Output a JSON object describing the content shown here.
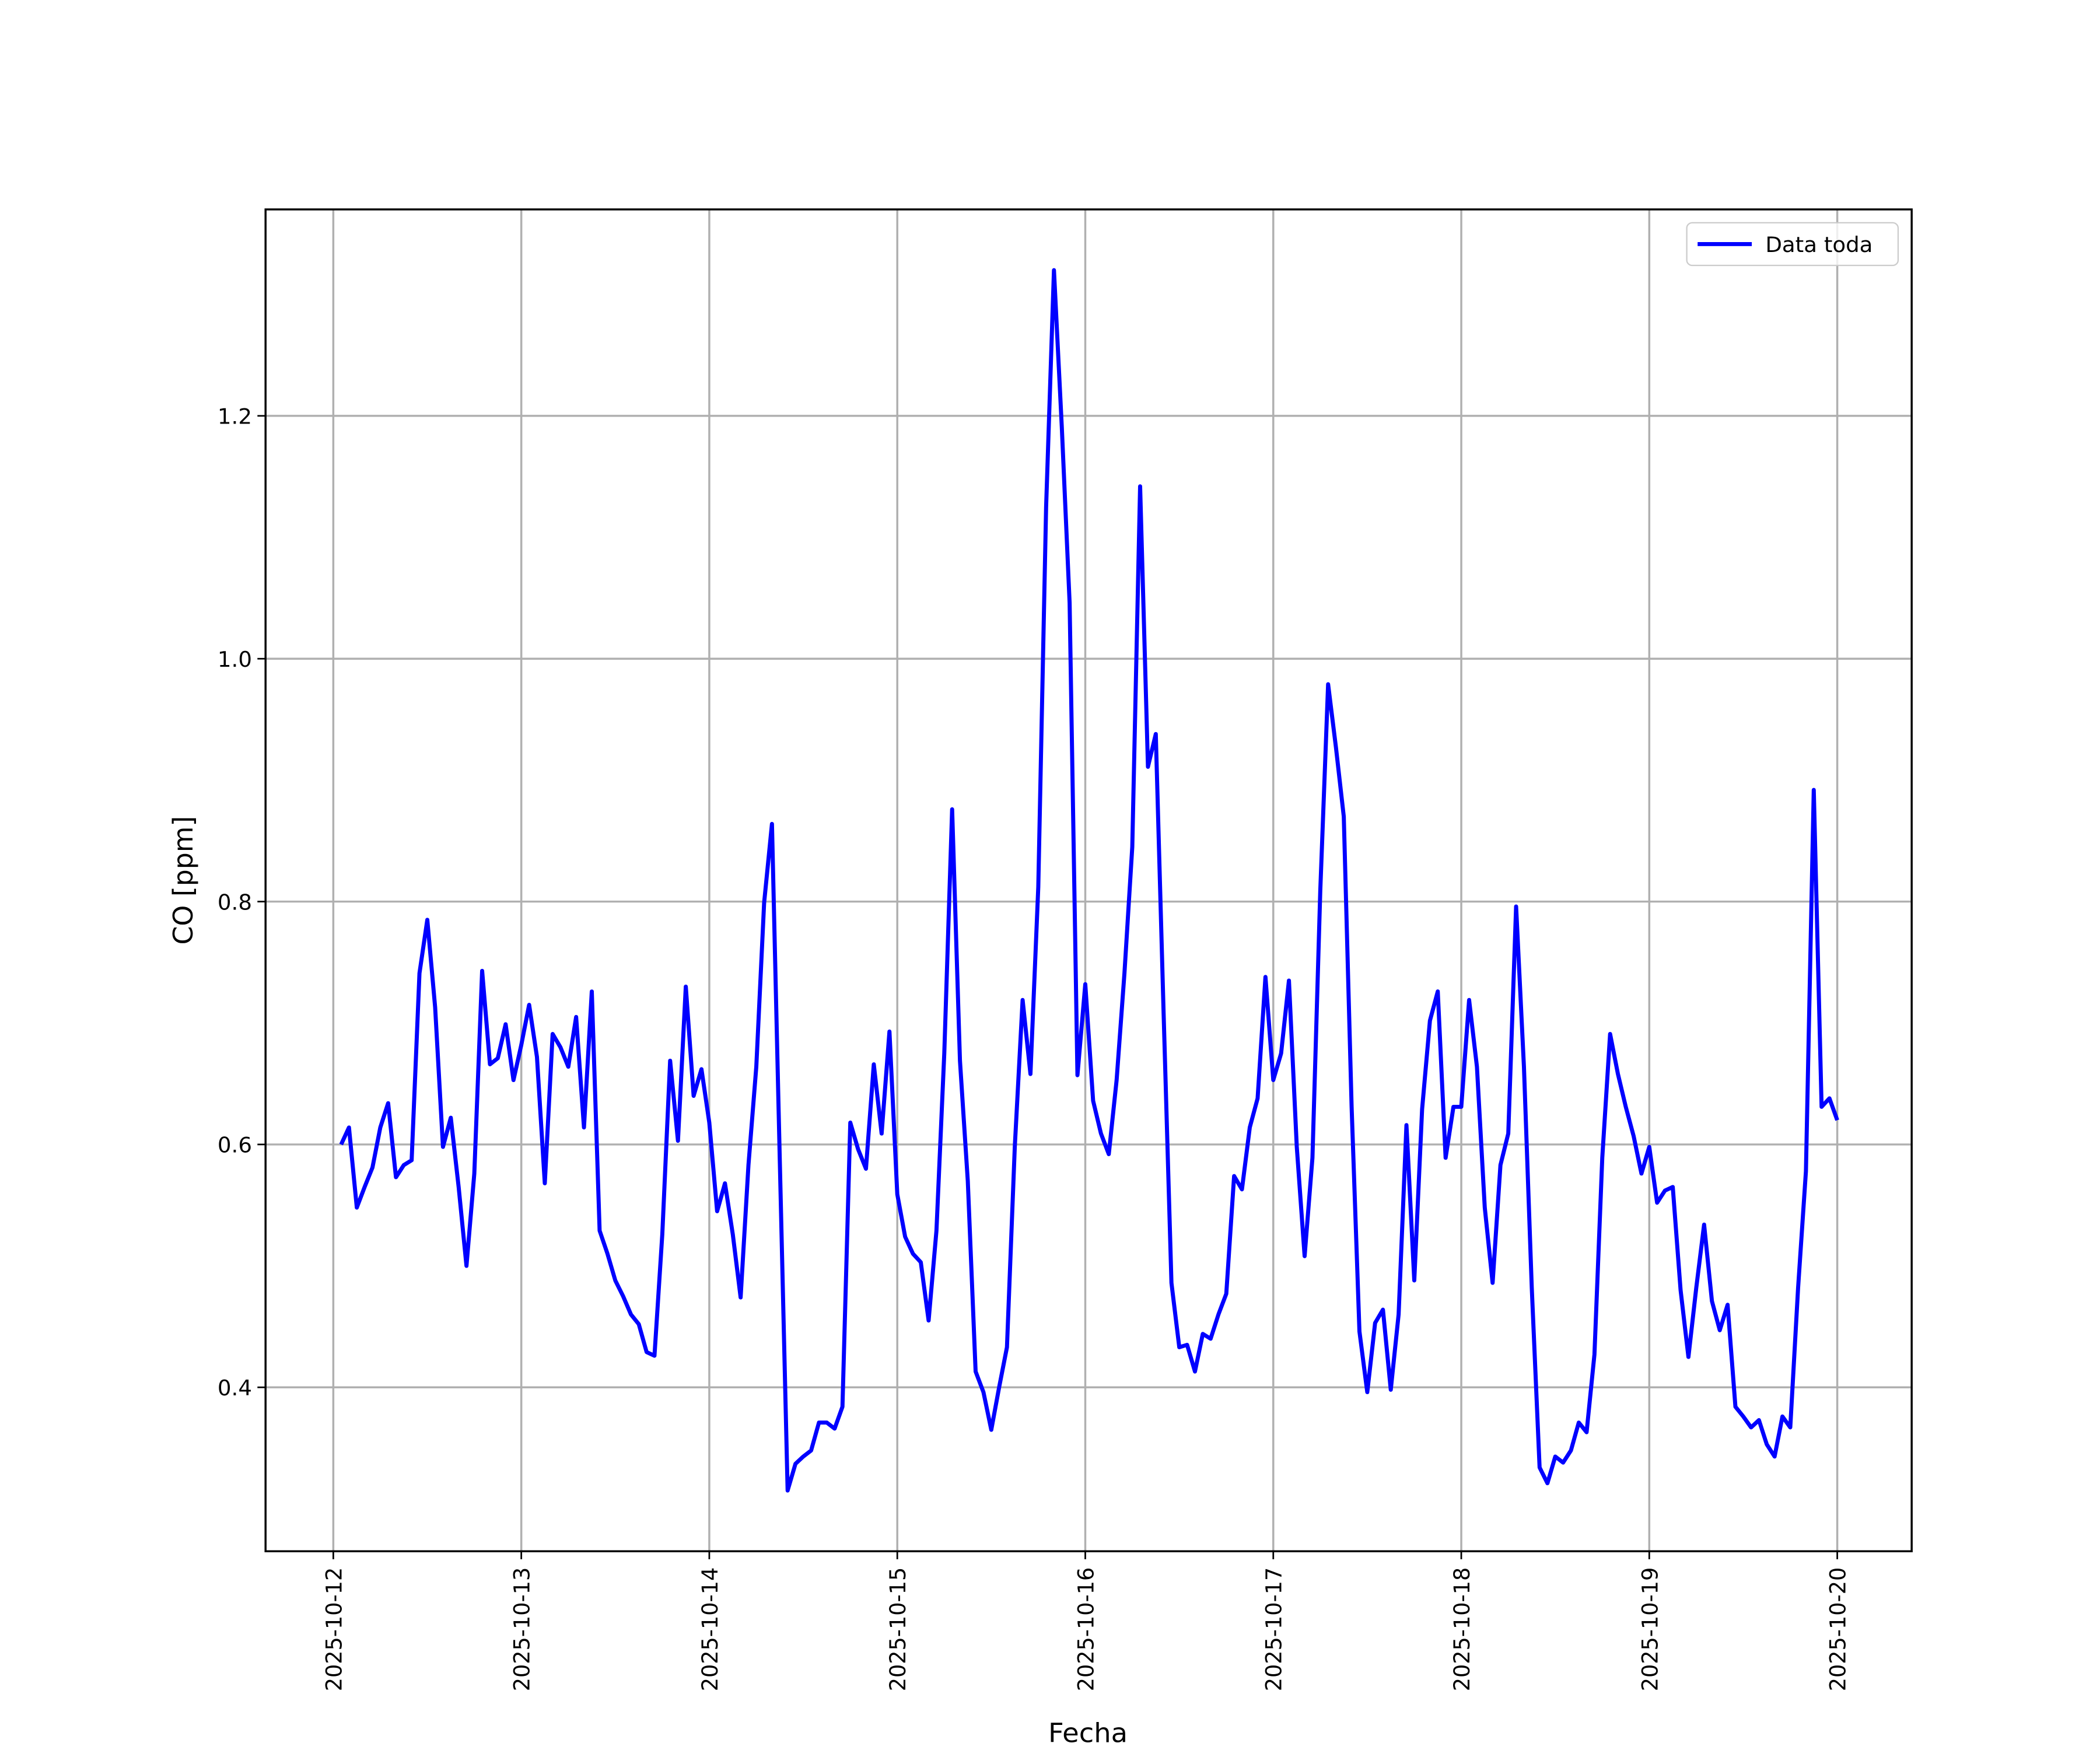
{
  "chart_data": {
    "type": "line",
    "x_label": "Fecha",
    "y_label": "CO [ppm]",
    "x": [
      "2025-10-12 01:00",
      "2025-10-12 02:00",
      "2025-10-12 03:00",
      "2025-10-12 04:00",
      "2025-10-12 05:00",
      "2025-10-12 06:00",
      "2025-10-12 07:00",
      "2025-10-12 08:00",
      "2025-10-12 09:00",
      "2025-10-12 10:00",
      "2025-10-12 11:00",
      "2025-10-12 12:00",
      "2025-10-12 13:00",
      "2025-10-12 14:00",
      "2025-10-12 15:00",
      "2025-10-12 16:00",
      "2025-10-12 17:00",
      "2025-10-12 18:00",
      "2025-10-12 19:00",
      "2025-10-12 20:00",
      "2025-10-12 21:00",
      "2025-10-12 22:00",
      "2025-10-12 23:00",
      "2025-10-13 00:00",
      "2025-10-13 01:00",
      "2025-10-13 02:00",
      "2025-10-13 03:00",
      "2025-10-13 04:00",
      "2025-10-13 05:00",
      "2025-10-13 06:00",
      "2025-10-13 07:00",
      "2025-10-13 08:00",
      "2025-10-13 09:00",
      "2025-10-13 10:00",
      "2025-10-13 11:00",
      "2025-10-13 12:00",
      "2025-10-13 13:00",
      "2025-10-13 14:00",
      "2025-10-13 15:00",
      "2025-10-13 16:00",
      "2025-10-13 17:00",
      "2025-10-13 18:00",
      "2025-10-13 19:00",
      "2025-10-13 20:00",
      "2025-10-13 21:00",
      "2025-10-13 22:00",
      "2025-10-13 23:00",
      "2025-10-14 00:00",
      "2025-10-14 01:00",
      "2025-10-14 02:00",
      "2025-10-14 03:00",
      "2025-10-14 04:00",
      "2025-10-14 05:00",
      "2025-10-14 06:00",
      "2025-10-14 07:00",
      "2025-10-14 08:00",
      "2025-10-14 09:00",
      "2025-10-14 10:00",
      "2025-10-14 11:00",
      "2025-10-14 12:00",
      "2025-10-14 13:00",
      "2025-10-14 14:00",
      "2025-10-14 15:00",
      "2025-10-14 16:00",
      "2025-10-14 17:00",
      "2025-10-14 18:00",
      "2025-10-14 19:00",
      "2025-10-14 20:00",
      "2025-10-14 21:00",
      "2025-10-14 22:00",
      "2025-10-14 23:00",
      "2025-10-15 00:00",
      "2025-10-15 01:00",
      "2025-10-15 02:00",
      "2025-10-15 03:00",
      "2025-10-15 04:00",
      "2025-10-15 05:00",
      "2025-10-15 06:00",
      "2025-10-15 07:00",
      "2025-10-15 08:00",
      "2025-10-15 09:00",
      "2025-10-15 10:00",
      "2025-10-15 11:00",
      "2025-10-15 12:00",
      "2025-10-15 13:00",
      "2025-10-15 14:00",
      "2025-10-15 15:00",
      "2025-10-15 16:00",
      "2025-10-15 17:00",
      "2025-10-15 18:00",
      "2025-10-15 19:00",
      "2025-10-15 20:00",
      "2025-10-15 21:00",
      "2025-10-15 22:00",
      "2025-10-15 23:00",
      "2025-10-16 00:00",
      "2025-10-16 01:00",
      "2025-10-16 02:00",
      "2025-10-16 03:00",
      "2025-10-16 04:00",
      "2025-10-16 05:00",
      "2025-10-16 06:00",
      "2025-10-16 07:00",
      "2025-10-16 08:00",
      "2025-10-16 09:00",
      "2025-10-16 10:00",
      "2025-10-16 11:00",
      "2025-10-16 12:00",
      "2025-10-16 13:00",
      "2025-10-16 14:00",
      "2025-10-16 15:00",
      "2025-10-16 16:00",
      "2025-10-16 17:00",
      "2025-10-16 18:00",
      "2025-10-16 19:00",
      "2025-10-16 20:00",
      "2025-10-16 21:00",
      "2025-10-16 22:00",
      "2025-10-16 23:00",
      "2025-10-17 00:00",
      "2025-10-17 01:00",
      "2025-10-17 02:00",
      "2025-10-17 03:00",
      "2025-10-17 04:00",
      "2025-10-17 05:00",
      "2025-10-17 06:00",
      "2025-10-17 07:00",
      "2025-10-17 08:00",
      "2025-10-17 09:00",
      "2025-10-17 10:00",
      "2025-10-17 11:00",
      "2025-10-17 12:00",
      "2025-10-17 13:00",
      "2025-10-17 14:00",
      "2025-10-17 15:00",
      "2025-10-17 16:00",
      "2025-10-17 17:00",
      "2025-10-17 18:00",
      "2025-10-17 19:00",
      "2025-10-17 20:00",
      "2025-10-17 21:00",
      "2025-10-17 22:00",
      "2025-10-17 23:00",
      "2025-10-18 00:00",
      "2025-10-18 01:00",
      "2025-10-18 02:00",
      "2025-10-18 03:00",
      "2025-10-18 04:00",
      "2025-10-18 05:00",
      "2025-10-18 06:00",
      "2025-10-18 07:00",
      "2025-10-18 08:00",
      "2025-10-18 09:00",
      "2025-10-18 10:00",
      "2025-10-18 11:00",
      "2025-10-18 12:00",
      "2025-10-18 13:00",
      "2025-10-18 14:00",
      "2025-10-18 15:00",
      "2025-10-18 16:00",
      "2025-10-18 17:00",
      "2025-10-18 18:00",
      "2025-10-18 19:00",
      "2025-10-18 20:00",
      "2025-10-18 21:00",
      "2025-10-18 22:00",
      "2025-10-18 23:00",
      "2025-10-19 00:00",
      "2025-10-19 01:00",
      "2025-10-19 02:00",
      "2025-10-19 03:00",
      "2025-10-19 04:00",
      "2025-10-19 05:00",
      "2025-10-19 06:00",
      "2025-10-19 07:00",
      "2025-10-19 08:00",
      "2025-10-19 09:00",
      "2025-10-19 10:00",
      "2025-10-19 11:00",
      "2025-10-19 12:00",
      "2025-10-19 13:00",
      "2025-10-19 14:00",
      "2025-10-19 15:00",
      "2025-10-19 16:00",
      "2025-10-19 17:00",
      "2025-10-19 18:00",
      "2025-10-19 19:00",
      "2025-10-19 20:00",
      "2025-10-19 21:00",
      "2025-10-19 22:00",
      "2025-10-19 23:00",
      "2025-10-20 00:00"
    ],
    "series": [
      {
        "name": "Data toda",
        "color": "#0000ff",
        "values": [
          0.6,
          0.614,
          0.548,
          0.565,
          0.581,
          0.614,
          0.634,
          0.573,
          0.583,
          0.587,
          0.741,
          0.785,
          0.713,
          0.598,
          0.622,
          0.565,
          0.5,
          0.576,
          0.743,
          0.666,
          0.671,
          0.699,
          0.653,
          0.682,
          0.715,
          0.672,
          0.568,
          0.691,
          0.68,
          0.664,
          0.705,
          0.614,
          0.726,
          0.529,
          0.51,
          0.488,
          0.475,
          0.46,
          0.452,
          0.429,
          0.426,
          0.526,
          0.669,
          0.603,
          0.73,
          0.64,
          0.662,
          0.618,
          0.545,
          0.568,
          0.526,
          0.474,
          0.583,
          0.664,
          0.799,
          0.864,
          0.587,
          0.315,
          0.337,
          0.343,
          0.348,
          0.371,
          0.371,
          0.366,
          0.384,
          0.618,
          0.596,
          0.58,
          0.666,
          0.609,
          0.693,
          0.559,
          0.524,
          0.51,
          0.503,
          0.455,
          0.529,
          0.675,
          0.876,
          0.669,
          0.57,
          0.413,
          0.396,
          0.365,
          0.4,
          0.433,
          0.598,
          0.719,
          0.658,
          0.812,
          1.125,
          1.32,
          1.191,
          1.046,
          0.657,
          0.732,
          0.636,
          0.609,
          0.592,
          0.653,
          0.741,
          0.845,
          1.142,
          0.911,
          0.938,
          0.708,
          0.486,
          0.433,
          0.435,
          0.413,
          0.444,
          0.44,
          0.46,
          0.477,
          0.574,
          0.563,
          0.614,
          0.638,
          0.738,
          0.653,
          0.675,
          0.735,
          0.598,
          0.508,
          0.589,
          0.809,
          0.979,
          0.927,
          0.87,
          0.631,
          0.446,
          0.396,
          0.453,
          0.464,
          0.398,
          0.46,
          0.616,
          0.488,
          0.629,
          0.702,
          0.726,
          0.589,
          0.631,
          0.631,
          0.719,
          0.664,
          0.548,
          0.486,
          0.583,
          0.609,
          0.796,
          0.664,
          0.482,
          0.334,
          0.321,
          0.343,
          0.338,
          0.348,
          0.371,
          0.363,
          0.427,
          0.589,
          0.691,
          0.658,
          0.631,
          0.607,
          0.576,
          0.598,
          0.552,
          0.562,
          0.565,
          0.48,
          0.425,
          0.482,
          0.534,
          0.471,
          0.447,
          0.468,
          0.384,
          0.376,
          0.367,
          0.373,
          0.353,
          0.343,
          0.376,
          0.367,
          0.482,
          0.578,
          0.892,
          0.631,
          0.638,
          0.62
        ]
      }
    ],
    "xlim": [
      "2025-10-11 15:21",
      "2025-10-20 09:30"
    ],
    "xticks": [
      "2025-10-12",
      "2025-10-13",
      "2025-10-14",
      "2025-10-15",
      "2025-10-16",
      "2025-10-17",
      "2025-10-18",
      "2025-10-19",
      "2025-10-20"
    ],
    "ylim": [
      0.265,
      1.37
    ],
    "yticks": [
      0.4,
      0.6,
      0.8,
      {
        "value": 1,
        "label": "1.0"
      },
      1.2
    ],
    "grid": true,
    "legend": "upper right"
  }
}
